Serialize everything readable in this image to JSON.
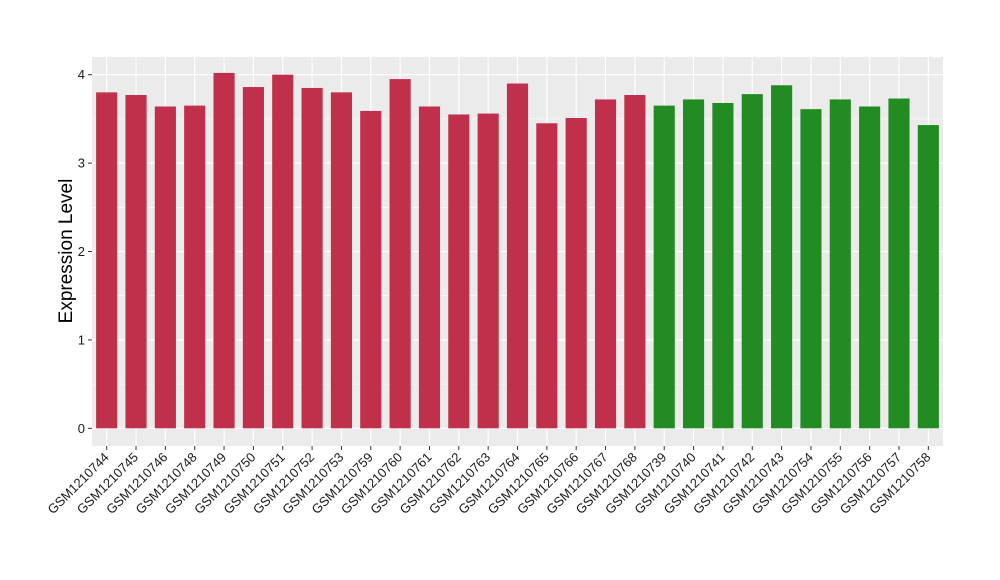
{
  "chart_data": {
    "type": "bar",
    "ylabel": "Expression Level",
    "ylim": [
      -0.2,
      4.2
    ],
    "yticks": [
      "0",
      "1",
      "2",
      "3",
      "4"
    ],
    "grid": true,
    "background": "#ebebeb",
    "grid_color": "#ffffff",
    "categories": [
      "GSM1210744",
      "GSM1210745",
      "GSM1210746",
      "GSM1210748",
      "GSM1210749",
      "GSM1210750",
      "GSM1210751",
      "GSM1210752",
      "GSM1210753",
      "GSM1210759",
      "GSM1210760",
      "GSM1210761",
      "GSM1210762",
      "GSM1210763",
      "GSM1210764",
      "GSM1210765",
      "GSM1210766",
      "GSM1210767",
      "GSM1210768",
      "GSM1210739",
      "GSM1210740",
      "GSM1210741",
      "GSM1210742",
      "GSM1210743",
      "GSM1210754",
      "GSM1210755",
      "GSM1210756",
      "GSM1210757",
      "GSM1210758"
    ],
    "values": [
      3.8,
      3.77,
      3.64,
      3.65,
      4.02,
      3.86,
      4.0,
      3.85,
      3.8,
      3.59,
      3.95,
      3.64,
      3.55,
      3.56,
      3.9,
      3.45,
      3.51,
      3.72,
      3.77,
      3.65,
      3.72,
      3.68,
      3.78,
      3.88,
      3.61,
      3.72,
      3.64,
      3.73,
      3.43
    ],
    "colors": [
      "#c0304a",
      "#c0304a",
      "#c0304a",
      "#c0304a",
      "#c0304a",
      "#c0304a",
      "#c0304a",
      "#c0304a",
      "#c0304a",
      "#c0304a",
      "#c0304a",
      "#c0304a",
      "#c0304a",
      "#c0304a",
      "#c0304a",
      "#c0304a",
      "#c0304a",
      "#c0304a",
      "#c0304a",
      "#228b22",
      "#228b22",
      "#228b22",
      "#228b22",
      "#228b22",
      "#228b22",
      "#228b22",
      "#228b22",
      "#228b22",
      "#228b22"
    ]
  }
}
